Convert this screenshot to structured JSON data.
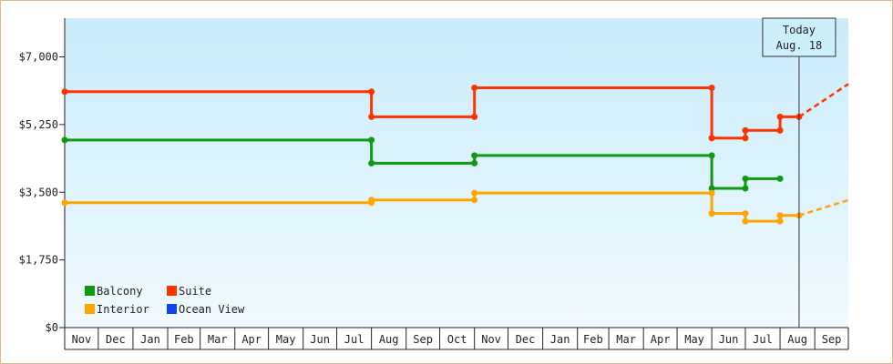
{
  "chart_data": {
    "type": "line",
    "title": "",
    "xlabel": "",
    "ylabel": "",
    "ylim": [
      0,
      8000
    ],
    "yticks": [
      {
        "value": 0,
        "label": "$0"
      },
      {
        "value": 1750,
        "label": "$1,750"
      },
      {
        "value": 3500,
        "label": "$3,500"
      },
      {
        "value": 5250,
        "label": "$5,250"
      },
      {
        "value": 7000,
        "label": "$7,000"
      }
    ],
    "x_start": "2019-11-01",
    "x_end": "2021-10-01",
    "months": [
      "Nov",
      "Dec",
      "Jan",
      "Feb",
      "Mar",
      "Apr",
      "May",
      "Jun",
      "Jul",
      "Aug",
      "Sep",
      "Oct",
      "Nov",
      "Dec",
      "Jan",
      "Feb",
      "Mar",
      "Apr",
      "May",
      "Jun",
      "Jul",
      "Aug",
      "Sep"
    ],
    "today": {
      "date": "2021-08-18",
      "line1": "Today",
      "line2": "Aug. 18"
    },
    "legend": [
      {
        "name": "Balcony",
        "color": "#119911"
      },
      {
        "name": "Suite",
        "color": "#ff3300"
      },
      {
        "name": "Interior",
        "color": "#ffa500"
      },
      {
        "name": "Ocean View",
        "color": "#1144ee"
      }
    ],
    "series": [
      {
        "name": "Suite",
        "color": "#ff3300",
        "points": [
          {
            "x": "2019-11-01",
            "y": 6100
          },
          {
            "x": "2020-08-01",
            "y": 6100
          },
          {
            "x": "2020-08-01",
            "y": 5450
          },
          {
            "x": "2020-11-01",
            "y": 5450
          },
          {
            "x": "2020-11-01",
            "y": 6200
          },
          {
            "x": "2021-06-01",
            "y": 6200
          },
          {
            "x": "2021-06-01",
            "y": 4900
          },
          {
            "x": "2021-07-01",
            "y": 4900
          },
          {
            "x": "2021-07-01",
            "y": 5100
          },
          {
            "x": "2021-08-01",
            "y": 5100
          },
          {
            "x": "2021-08-01",
            "y": 5450
          },
          {
            "x": "2021-08-18",
            "y": 5450
          }
        ],
        "projection": [
          {
            "x": "2021-08-18",
            "y": 5450
          },
          {
            "x": "2021-10-01",
            "y": 6300
          }
        ]
      },
      {
        "name": "Balcony",
        "color": "#119911",
        "points": [
          {
            "x": "2019-11-01",
            "y": 4850
          },
          {
            "x": "2020-08-01",
            "y": 4850
          },
          {
            "x": "2020-08-01",
            "y": 4250
          },
          {
            "x": "2020-11-01",
            "y": 4250
          },
          {
            "x": "2020-11-01",
            "y": 4450
          },
          {
            "x": "2021-06-01",
            "y": 4450
          },
          {
            "x": "2021-06-01",
            "y": 3600
          },
          {
            "x": "2021-07-01",
            "y": 3600
          },
          {
            "x": "2021-07-01",
            "y": 3850
          },
          {
            "x": "2021-08-01",
            "y": 3850
          }
        ],
        "projection": []
      },
      {
        "name": "Interior",
        "color": "#ffa500",
        "points": [
          {
            "x": "2019-11-01",
            "y": 3230
          },
          {
            "x": "2020-08-01",
            "y": 3230
          },
          {
            "x": "2020-08-01",
            "y": 3300
          },
          {
            "x": "2020-11-01",
            "y": 3300
          },
          {
            "x": "2020-11-01",
            "y": 3480
          },
          {
            "x": "2021-06-01",
            "y": 3480
          },
          {
            "x": "2021-06-01",
            "y": 2950
          },
          {
            "x": "2021-07-01",
            "y": 2950
          },
          {
            "x": "2021-07-01",
            "y": 2750
          },
          {
            "x": "2021-08-01",
            "y": 2750
          },
          {
            "x": "2021-08-01",
            "y": 2900
          },
          {
            "x": "2021-08-18",
            "y": 2900
          }
        ],
        "projection": [
          {
            "x": "2021-08-18",
            "y": 2900
          },
          {
            "x": "2021-10-01",
            "y": 3300
          }
        ]
      }
    ]
  }
}
